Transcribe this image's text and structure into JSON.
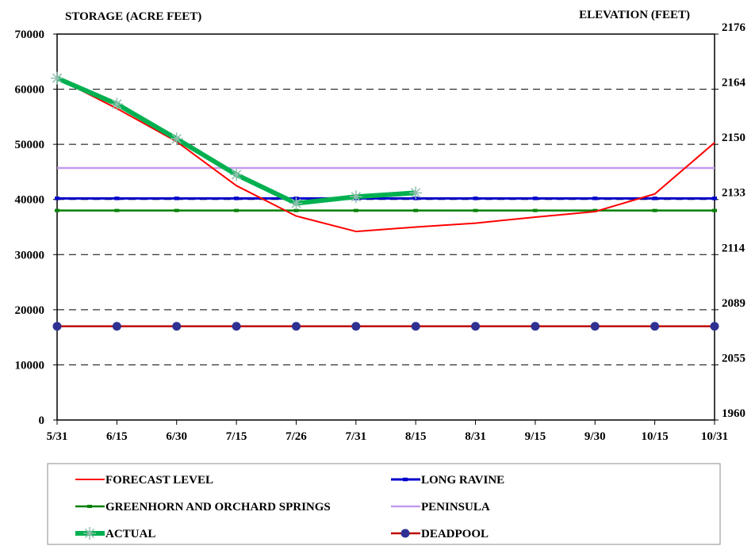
{
  "chart_data": {
    "type": "line",
    "ylabel_left": "STORAGE (ACRE FEET)",
    "ylabel_right": "ELEVATION (FEET)",
    "categories": [
      "5/31",
      "6/15",
      "6/30",
      "7/15",
      "7/26",
      "7/31",
      "8/15",
      "8/31",
      "9/15",
      "9/30",
      "10/15",
      "10/31"
    ],
    "ylim": [
      0,
      70000
    ],
    "y_ticks": [
      0,
      10000,
      20000,
      30000,
      40000,
      50000,
      60000,
      70000
    ],
    "y_tick_labels": [
      "0",
      "10000",
      "20000",
      "30000",
      "40000",
      "50000",
      "60000",
      "70000"
    ],
    "y2_tick_labels": [
      "1960",
      "2055",
      "2089",
      "2114",
      "2133",
      "2150",
      "2164",
      "2176"
    ],
    "grid": "horizontal dashed",
    "legend_position": "bottom",
    "series": [
      {
        "name": "FORECAST LEVEL",
        "color": "#ff0000",
        "marker": "none",
        "values": [
          62000,
          56500,
          50500,
          42500,
          37000,
          34200,
          35000,
          35700,
          36800,
          37800,
          41000,
          50300
        ]
      },
      {
        "name": "LONG RAVINE",
        "color": "#0000cc",
        "marker": "dash",
        "values": [
          40200,
          40200,
          40200,
          40200,
          40200,
          40200,
          40200,
          40200,
          40200,
          40200,
          40200,
          40200
        ]
      },
      {
        "name": "GREENHORN AND ORCHARD SPRINGS",
        "color": "#008000",
        "marker": "dash",
        "values": [
          38000,
          38000,
          38000,
          38000,
          38000,
          38000,
          38000,
          38000,
          38000,
          38000,
          38000,
          38000
        ]
      },
      {
        "name": "PENINSULA",
        "color": "#c39bf0",
        "marker": "none",
        "values": [
          45700,
          45700,
          45700,
          45700,
          45700,
          45700,
          45700,
          45700,
          45700,
          45700,
          45700,
          45700
        ]
      },
      {
        "name": "ACTUAL",
        "color": "#00b050",
        "marker": "star",
        "values": [
          62000,
          57300,
          51000,
          44500,
          39300,
          40500,
          41200,
          null,
          null,
          null,
          null,
          null
        ]
      },
      {
        "name": "DEADPOOL",
        "color": "#c00000",
        "marker": "circle",
        "marker_color": "#2e3192",
        "values": [
          17000,
          17000,
          17000,
          17000,
          17000,
          17000,
          17000,
          17000,
          17000,
          17000,
          17000,
          17000
        ]
      }
    ]
  }
}
